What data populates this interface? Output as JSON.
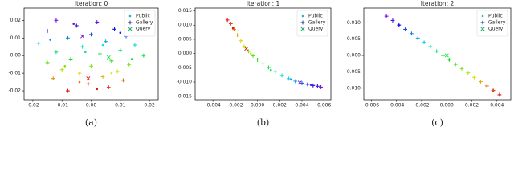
{
  "chart_data": [
    {
      "type": "scatter",
      "title": "Iteration: 0",
      "caption": "(a)",
      "colormap": "rainbow",
      "legend": "upper right",
      "xlim": [
        -0.023,
        0.023
      ],
      "ylim": [
        -0.025,
        0.027
      ],
      "xticks": [
        -0.02,
        -0.01,
        {
          "value": 0,
          "label": "0.00"
        },
        0.01,
        0.02
      ],
      "yticks": [
        -0.02,
        -0.01,
        {
          "value": 0,
          "label": "0.00"
        },
        0.01,
        0.02
      ],
      "series": [
        {
          "name": "Public",
          "marker": "dot",
          "color": "#2ab3c8",
          "x": [
            -0.006,
            0.01,
            -0.014,
            0.004,
            -0.002,
            0.014,
            -0.009,
            0.007,
            -0.004,
            0.002
          ],
          "y": [
            0.018,
            0.013,
            0.009,
            0.006,
            0.002,
            -0.002,
            -0.006,
            -0.01,
            -0.015,
            -0.019
          ]
        },
        {
          "name": "Gallery",
          "marker": "plus",
          "color": "#2b2f8f",
          "x": [
            -0.012,
            0.002,
            -0.005,
            0.008,
            -0.015,
            0.0,
            0.012,
            -0.008,
            0.005,
            -0.018,
            0.015,
            -0.003,
            0.01,
            -0.012,
            0.003,
            0.018,
            -0.007,
            0.007,
            -0.015,
            0.013,
            0.0,
            -0.01,
            0.009,
            -0.004,
            0.004,
            -0.013,
            0.011,
            -0.001,
            0.006,
            -0.008
          ],
          "y": [
            0.02,
            0.019,
            0.017,
            0.015,
            0.014,
            0.012,
            0.011,
            0.01,
            0.008,
            0.007,
            0.006,
            0.005,
            0.003,
            0.002,
            0.001,
            0.0,
            -0.002,
            -0.003,
            -0.004,
            -0.005,
            -0.006,
            -0.008,
            -0.009,
            -0.01,
            -0.012,
            -0.013,
            -0.014,
            -0.016,
            -0.018,
            -0.02
          ]
        },
        {
          "name": "Query",
          "marker": "x",
          "color": "#1fae6e",
          "x": [
            -0.003,
            0.006,
            -0.001
          ],
          "y": [
            0.011,
            -0.001,
            -0.013
          ]
        }
      ]
    },
    {
      "type": "scatter",
      "title": "Iteration: 1",
      "caption": "(b)",
      "colormap": "rainbow",
      "legend": "upper right",
      "xlim": [
        -0.0056,
        0.0066
      ],
      "ylim": [
        -0.0162,
        0.016
      ],
      "xticks": [
        -0.004,
        -0.002,
        {
          "value": 0,
          "label": "0.000"
        },
        0.002,
        0.004,
        0.006
      ],
      "yticks": [
        -0.015,
        {
          "value": -0.01,
          "label": "-0.010"
        },
        -0.005,
        {
          "value": 0,
          "label": "0.000"
        },
        0.005,
        {
          "value": 0.01,
          "label": "0.010"
        },
        0.015
      ],
      "series": [
        {
          "name": "Public",
          "marker": "dot",
          "color": "#2ab3c8",
          "x": [
            0.0048,
            0.003,
            0.0012,
            -0.0006,
            -0.0022
          ],
          "y": [
            -0.011,
            -0.0091,
            -0.0058,
            0.0,
            0.009
          ]
        },
        {
          "name": "Gallery",
          "marker": "plus",
          "color": "#2b2f8f",
          "x": [
            0.0057,
            0.0054,
            0.005,
            0.0045,
            0.004,
            0.0034,
            0.0028,
            0.0022,
            0.0016,
            0.001,
            0.0005,
            0.0,
            -0.0004,
            -0.0008,
            -0.0012,
            -0.0015,
            -0.0018,
            -0.0021,
            -0.0024,
            -0.0027
          ],
          "y": [
            -0.0118,
            -0.0115,
            -0.0112,
            -0.0108,
            -0.0104,
            -0.0097,
            -0.0088,
            -0.0077,
            -0.0064,
            -0.0049,
            -0.0036,
            -0.0022,
            -0.0008,
            0.0008,
            0.0025,
            0.0045,
            0.0065,
            0.0085,
            0.0105,
            0.0118
          ]
        },
        {
          "name": "Query",
          "marker": "x",
          "color": "#1fae6e",
          "x": [
            0.0038,
            -0.001
          ],
          "y": [
            -0.0102,
            0.0017
          ]
        }
      ]
    },
    {
      "type": "scatter",
      "title": "Iteration: 2",
      "caption": "(c)",
      "colormap": "rainbow",
      "legend": "upper right",
      "xlim": [
        -0.0066,
        0.0051
      ],
      "ylim": [
        -0.0135,
        0.0145
      ],
      "xticks": [
        -0.006,
        -0.004,
        -0.002,
        {
          "value": 0,
          "label": "0.000"
        },
        0.002,
        0.004
      ],
      "yticks": [
        {
          "value": -0.01,
          "label": "-0.010"
        },
        -0.005,
        {
          "value": 0,
          "label": "0.000"
        },
        0.005,
        {
          "value": 0.01,
          "label": "0.010"
        }
      ],
      "series": [
        {
          "name": "Public",
          "marker": "dot",
          "color": "#2ab3c8",
          "x": [
            -0.0038,
            -0.0018,
            0.0002,
            0.0022,
            0.0037
          ],
          "y": [
            0.0093,
            0.004,
            -0.0013,
            -0.0067,
            -0.0107
          ]
        },
        {
          "name": "Gallery",
          "marker": "plus",
          "color": "#2b2f8f",
          "x": [
            -0.0048,
            -0.0043,
            -0.0038,
            -0.0033,
            -0.0028,
            -0.0023,
            -0.0018,
            -0.0013,
            -0.0008,
            -0.0003,
            0.0002,
            0.0007,
            0.0012,
            0.0017,
            0.0022,
            0.0027,
            0.0032,
            0.0037,
            0.0042
          ],
          "y": [
            0.012,
            0.0107,
            0.0093,
            0.008,
            0.0067,
            0.0053,
            0.004,
            0.0027,
            0.0013,
            0.0,
            -0.0013,
            -0.0027,
            -0.004,
            -0.0053,
            -0.0067,
            -0.008,
            -0.0093,
            -0.0107,
            -0.012
          ]
        },
        {
          "name": "Query",
          "marker": "x",
          "color": "#1fae6e",
          "x": [
            0.0
          ],
          "y": [
            0.0
          ]
        }
      ]
    }
  ]
}
